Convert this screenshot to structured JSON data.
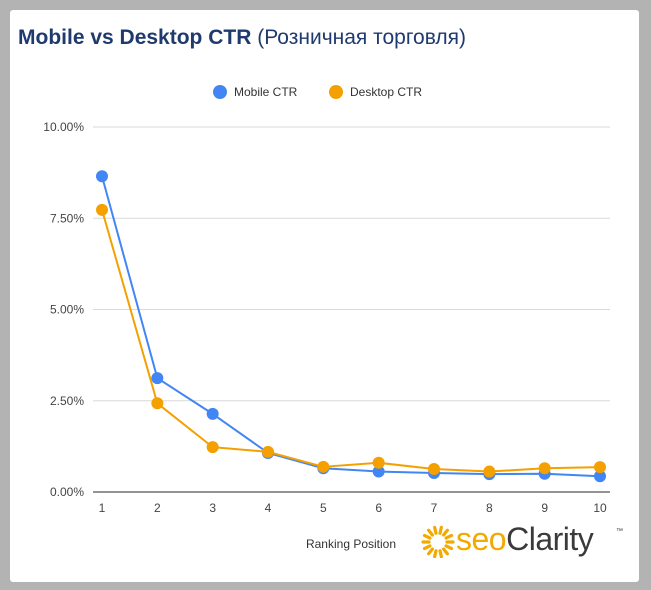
{
  "title": {
    "main": "Mobile vs Desktop CTR",
    "sub": "(Розничная торговля)"
  },
  "logo": {
    "seo": "seo",
    "clarity": "Clarity",
    "tm": "™"
  },
  "chart_data": {
    "type": "line",
    "title": "Mobile vs Desktop CTR (Розничная торговля)",
    "xlabel": "Ranking Position",
    "ylabel": "",
    "x": [
      1,
      2,
      3,
      4,
      5,
      6,
      7,
      8,
      9,
      10
    ],
    "ylim": [
      0,
      10
    ],
    "y_ticks": [
      0,
      2.5,
      5,
      7.5,
      10
    ],
    "y_tick_labels": [
      "0.00%",
      "2.50%",
      "5.00%",
      "7.50%",
      "10.00%"
    ],
    "legend": "top-center",
    "grid": true,
    "series": [
      {
        "name": "Mobile CTR",
        "color": "#4285f4",
        "values": [
          8.65,
          3.12,
          2.14,
          1.07,
          0.65,
          0.56,
          0.52,
          0.49,
          0.5,
          0.43
        ]
      },
      {
        "name": "Desktop CTR",
        "color": "#f4a000",
        "values": [
          7.73,
          2.43,
          1.23,
          1.1,
          0.69,
          0.8,
          0.63,
          0.56,
          0.65,
          0.68
        ]
      }
    ]
  }
}
